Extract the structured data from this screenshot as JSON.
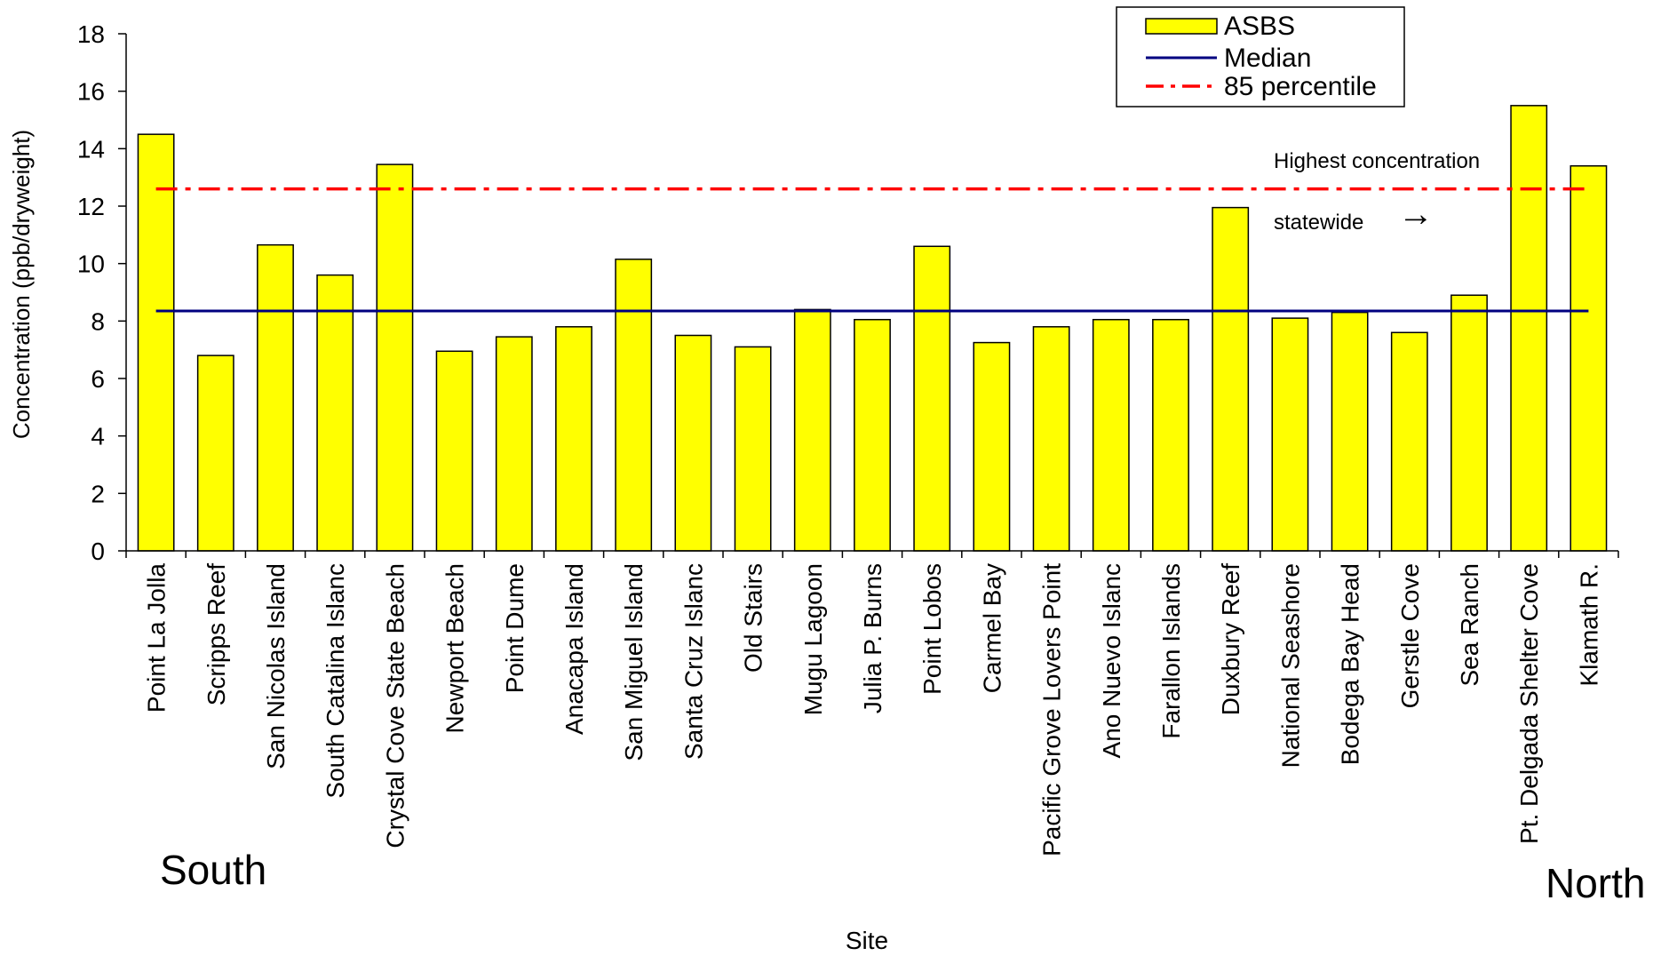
{
  "chart_data": {
    "type": "bar",
    "xlabel": "Site",
    "ylabel": "Concentration (ppb/dryweight)",
    "ylim": [
      0,
      18
    ],
    "yticks": [
      0,
      2,
      4,
      6,
      8,
      10,
      12,
      14,
      16,
      18
    ],
    "grid": false,
    "legend_position": "top-right",
    "categories": [
      "Point La Jolla",
      "Scripps Reef",
      "San Nicolas Island",
      "South Catalina Islanc",
      "Crystal Cove State Beach",
      "Newport Beach",
      "Point Dume",
      "Anacapa  Island",
      "San Miguel Island",
      "Santa Cruz Islanc",
      "Old Stairs",
      "Mugu Lagoon",
      "Julia P. Burns",
      "Point Lobos",
      "Carmel Bay",
      "Pacific Grove Lovers Point",
      "Ano Nuevo Islanc",
      "Farallon Islands",
      "Duxbury Reef",
      "National Seashore",
      "Bodega Bay Head",
      "Gerstle Cove",
      "Sea Ranch",
      "Pt. Delgada Shelter  Cove",
      "Klamath R."
    ],
    "series": [
      {
        "name": "ASBS",
        "color": "#ffff00",
        "values": [
          14.5,
          6.8,
          10.65,
          9.6,
          13.45,
          6.95,
          7.45,
          7.8,
          10.15,
          7.5,
          7.1,
          8.4,
          8.05,
          10.6,
          7.25,
          7.8,
          8.05,
          8.05,
          11.95,
          8.1,
          8.3,
          7.6,
          8.9,
          15.5,
          13.4
        ]
      }
    ],
    "reference_lines": [
      {
        "name": "Median",
        "value": 8.35,
        "color": "#000080",
        "style": "solid"
      },
      {
        "name": "85 percentile",
        "value": 12.6,
        "color": "#ff0000",
        "style": "dash-dot"
      }
    ],
    "annotations": {
      "highest_line1": "Highest concentration",
      "highest_line2": "statewide",
      "arrow": "→",
      "south": "South",
      "north": "North"
    }
  }
}
